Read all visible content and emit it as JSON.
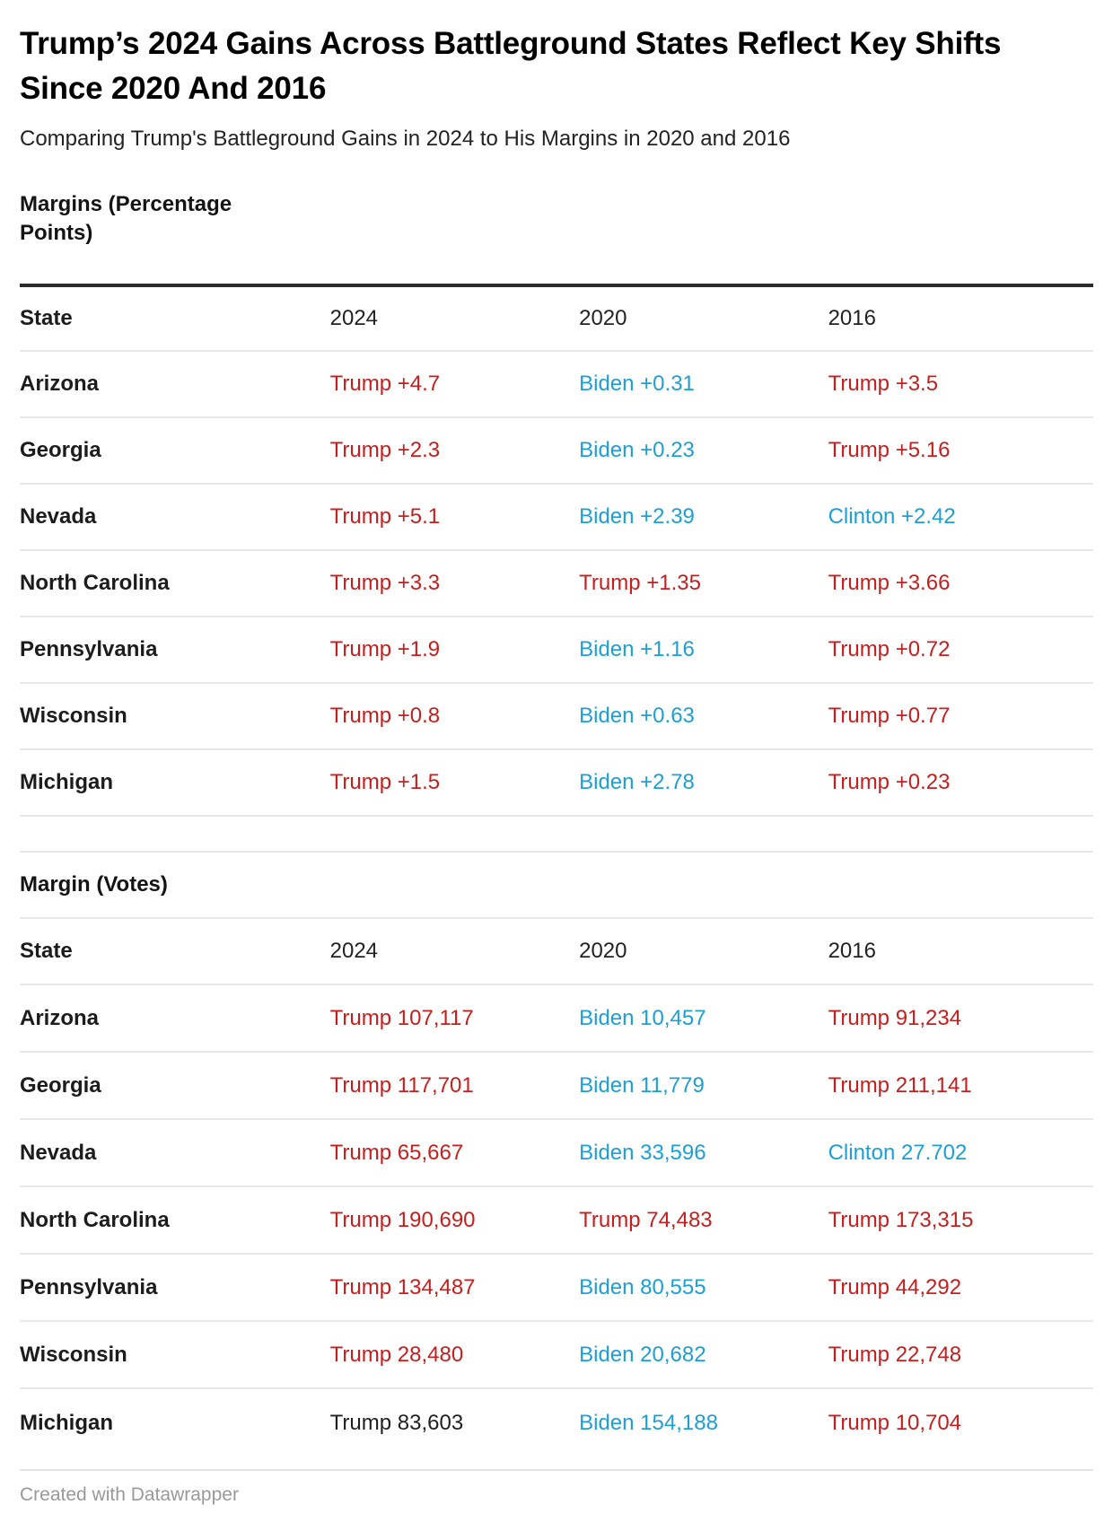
{
  "chart_data": {
    "type": "table",
    "title": "Trump’s 2024 Gains Across Battleground States Reflect Key Shifts Since 2020 And 2016",
    "subtitle": "Comparing Trump's Battleground Gains in 2024 to His Margins in 2020 and 2016",
    "tables": [
      {
        "heading": "Margins (Percentage Points)",
        "columns": [
          "State",
          "2024",
          "2020",
          "2016"
        ],
        "rows": [
          {
            "state": "Arizona",
            "cells": [
              {
                "text": "Trump +4.7",
                "color": "red"
              },
              {
                "text": "Biden +0.31",
                "color": "blue"
              },
              {
                "text": "Trump +3.5",
                "color": "red"
              }
            ]
          },
          {
            "state": "Georgia",
            "cells": [
              {
                "text": "Trump +2.3",
                "color": "red"
              },
              {
                "text": "Biden +0.23",
                "color": "blue"
              },
              {
                "text": "Trump +5.16",
                "color": "red"
              }
            ]
          },
          {
            "state": "Nevada",
            "cells": [
              {
                "text": "Trump +5.1",
                "color": "red"
              },
              {
                "text": "Biden +2.39",
                "color": "blue"
              },
              {
                "text": "Clinton +2.42",
                "color": "blue"
              }
            ]
          },
          {
            "state": "North Carolina",
            "cells": [
              {
                "text": "Trump +3.3",
                "color": "red"
              },
              {
                "text": "Trump +1.35",
                "color": "red"
              },
              {
                "text": "Trump +3.66",
                "color": "red"
              }
            ]
          },
          {
            "state": "Pennsylvania",
            "cells": [
              {
                "text": "Trump +1.9",
                "color": "red"
              },
              {
                "text": "Biden +1.16",
                "color": "blue"
              },
              {
                "text": "Trump +0.72",
                "color": "red"
              }
            ]
          },
          {
            "state": "Wisconsin",
            "cells": [
              {
                "text": "Trump +0.8",
                "color": "red"
              },
              {
                "text": "Biden +0.63",
                "color": "blue"
              },
              {
                "text": "Trump +0.77",
                "color": "red"
              }
            ]
          },
          {
            "state": "Michigan",
            "cells": [
              {
                "text": "Trump +1.5",
                "color": "red"
              },
              {
                "text": "Biden +2.78",
                "color": "blue"
              },
              {
                "text": "Trump +0.23",
                "color": "red"
              }
            ]
          }
        ]
      },
      {
        "heading": "Margin (Votes)",
        "columns": [
          "State",
          "2024",
          "2020",
          "2016"
        ],
        "rows": [
          {
            "state": "Arizona",
            "cells": [
              {
                "text": "Trump 107,117",
                "color": "red"
              },
              {
                "text": "Biden 10,457",
                "color": "blue"
              },
              {
                "text": "Trump 91,234",
                "color": "red"
              }
            ]
          },
          {
            "state": "Georgia",
            "cells": [
              {
                "text": "Trump 117,701",
                "color": "red"
              },
              {
                "text": "Biden 11,779",
                "color": "blue"
              },
              {
                "text": "Trump 211,141",
                "color": "red"
              }
            ]
          },
          {
            "state": "Nevada",
            "cells": [
              {
                "text": "Trump 65,667",
                "color": "red"
              },
              {
                "text": "Biden 33,596",
                "color": "blue"
              },
              {
                "text": "Clinton 27.702",
                "color": "blue"
              }
            ]
          },
          {
            "state": "North Carolina",
            "cells": [
              {
                "text": "Trump 190,690",
                "color": "red"
              },
              {
                "text": "Trump 74,483",
                "color": "red"
              },
              {
                "text": "Trump 173,315",
                "color": "red"
              }
            ]
          },
          {
            "state": "Pennsylvania",
            "cells": [
              {
                "text": "Trump 134,487",
                "color": "red"
              },
              {
                "text": "Biden 80,555",
                "color": "blue"
              },
              {
                "text": "Trump 44,292",
                "color": "red"
              }
            ]
          },
          {
            "state": "Wisconsin",
            "cells": [
              {
                "text": "Trump 28,480",
                "color": "red"
              },
              {
                "text": "Biden 20,682",
                "color": "blue"
              },
              {
                "text": "Trump 22,748",
                "color": "red"
              }
            ]
          },
          {
            "state": "Michigan",
            "cells": [
              {
                "text": "Trump 83,603",
                "color": "black"
              },
              {
                "text": "Biden 154,188",
                "color": "blue"
              },
              {
                "text": "Trump 10,704",
                "color": "red"
              }
            ]
          }
        ]
      }
    ],
    "layout": {
      "grid": "off",
      "legend": "none"
    }
  },
  "colors": {
    "trump_red": "#c71e1d",
    "dem_blue": "#1c9fd6",
    "neutral_black": "#1f1f1f",
    "divider": "#e8e8e8",
    "thick_rule": "#2b2b2b",
    "footer_text": "#999999"
  },
  "footer": {
    "credit": "Created with Datawrapper"
  }
}
